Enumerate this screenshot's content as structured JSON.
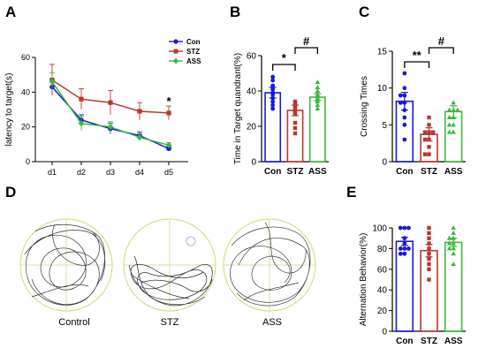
{
  "panel_letters": {
    "a": "A",
    "b": "B",
    "c": "C",
    "d": "D",
    "e": "E"
  },
  "colors": {
    "con": "#1a1ad6",
    "stz": "#b5392e",
    "ass": "#3cb83c"
  },
  "chart_data": [
    {
      "id": "A",
      "type": "line",
      "xlabel": "",
      "ylabel": "latency to target(s)",
      "categories": [
        "d1",
        "d2",
        "d3",
        "d4",
        "d5"
      ],
      "ylim": [
        0,
        60
      ],
      "yticks": [
        0,
        20,
        40,
        60
      ],
      "legend_position": "top-right",
      "series": [
        {
          "name": "Con",
          "values": [
            43,
            24,
            19,
            15,
            7.5
          ],
          "errors": [
            4,
            3,
            3,
            2,
            1
          ],
          "marker": "circle"
        },
        {
          "name": "STZ",
          "values": [
            47,
            36,
            34,
            29,
            28
          ],
          "errors": [
            9,
            6,
            7,
            5,
            4
          ],
          "marker": "square"
        },
        {
          "name": "ASS",
          "values": [
            46,
            22,
            20,
            14,
            9.5
          ],
          "errors": [
            5,
            4,
            3,
            2,
            1.5
          ],
          "marker": "diamond"
        }
      ],
      "annotations": [
        {
          "text": "*",
          "category": "d5"
        }
      ]
    },
    {
      "id": "B",
      "type": "bar",
      "categories": [
        "Con",
        "STZ",
        "ASS"
      ],
      "values": [
        39,
        29,
        36.5
      ],
      "errors": [
        3,
        3,
        2
      ],
      "ylabel": "Time in Target quandrant(%)",
      "xlabel": "",
      "ylim": [
        0,
        60
      ],
      "yticks": [
        0,
        20,
        40,
        60
      ],
      "points": [
        [
          48,
          46,
          43,
          41,
          39,
          38,
          36,
          34,
          32,
          30
        ],
        [
          34,
          33,
          31,
          30,
          29,
          28,
          27,
          22,
          19,
          16
        ],
        [
          45,
          42,
          40,
          38,
          37,
          36,
          35,
          34,
          32,
          30
        ]
      ],
      "significance": [
        {
          "from": 0,
          "to": 1,
          "text": "*"
        },
        {
          "from": 1,
          "to": 2,
          "text": "#"
        }
      ]
    },
    {
      "id": "C",
      "type": "bar",
      "categories": [
        "Con",
        "STZ",
        "ASS"
      ],
      "values": [
        8.2,
        3.7,
        6.8
      ],
      "errors": [
        1.2,
        0.9,
        0.8
      ],
      "ylabel": "Crossing Times",
      "xlabel": "",
      "ylim": [
        0,
        15
      ],
      "yticks": [
        0,
        5,
        10,
        15
      ],
      "points": [
        [
          12,
          10,
          9,
          9,
          8,
          8,
          7,
          6,
          5,
          3
        ],
        [
          6,
          5,
          4,
          4,
          4,
          3,
          3,
          2,
          1,
          1
        ],
        [
          8,
          7,
          7,
          7,
          6,
          6,
          5,
          5,
          4,
          4
        ]
      ],
      "significance": [
        {
          "from": 0,
          "to": 1,
          "text": "**"
        },
        {
          "from": 1,
          "to": 2,
          "text": "#"
        }
      ]
    },
    {
      "id": "E",
      "type": "bar",
      "categories": [
        "Con",
        "STZ",
        "ASS"
      ],
      "values": [
        87,
        78,
        86
      ],
      "errors": [
        4,
        6,
        4
      ],
      "ylabel": "Alternation Behavior(%)",
      "xlabel": "",
      "ylim": [
        0,
        100
      ],
      "yticks": [
        0,
        20,
        40,
        60,
        80,
        100
      ],
      "points": [
        [
          100,
          100,
          100,
          90,
          85,
          80,
          80,
          80,
          75,
          75
        ],
        [
          100,
          95,
          90,
          85,
          80,
          75,
          70,
          65,
          60,
          50
        ],
        [
          100,
          95,
          90,
          90,
          85,
          85,
          80,
          80,
          75,
          65
        ]
      ],
      "significance": []
    }
  ],
  "tracks": {
    "labels": [
      "Control",
      "STZ",
      "ASS"
    ]
  }
}
